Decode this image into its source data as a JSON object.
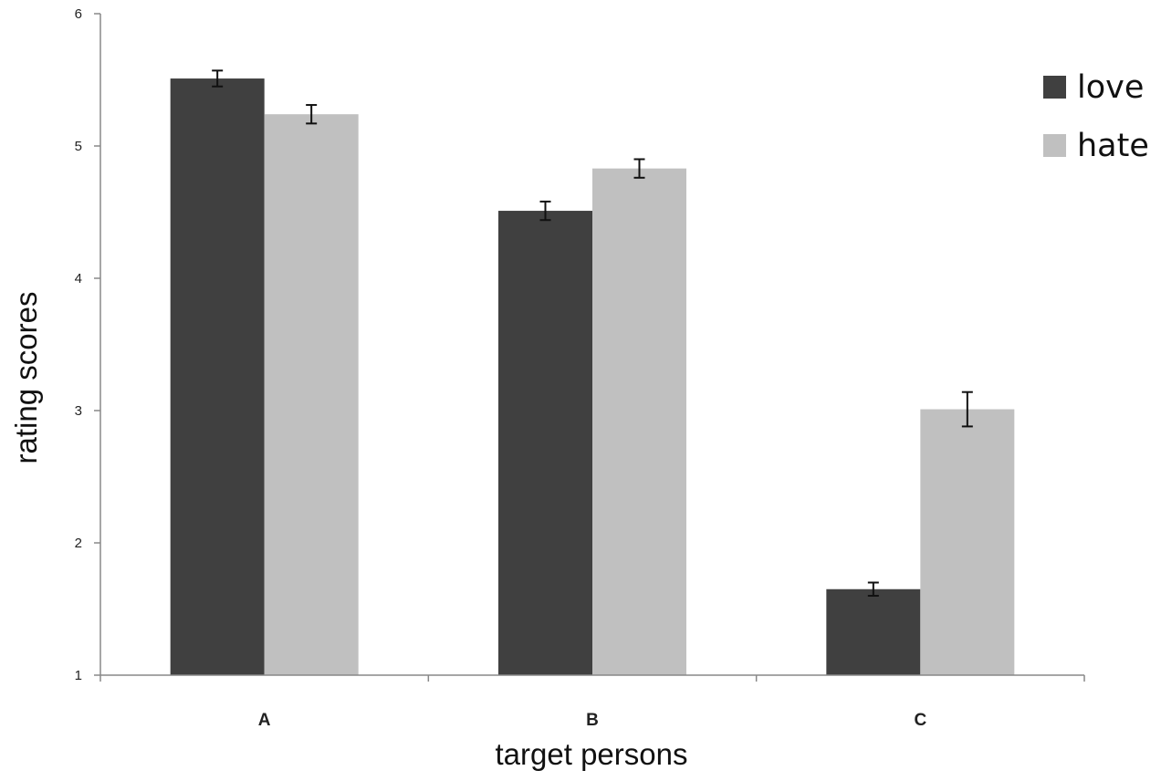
{
  "chart_data": {
    "type": "bar",
    "xlabel": "target persons",
    "ylabel": "rating  scores",
    "categories": [
      "A",
      "B",
      "C"
    ],
    "ylim": [
      1,
      6
    ],
    "yticks": [
      1,
      2,
      3,
      4,
      5,
      6
    ],
    "grid": false,
    "legend_position": "top-right",
    "series": [
      {
        "name": "love",
        "color": "#404040",
        "values": [
          5.51,
          4.51,
          1.65
        ],
        "errors": [
          0.06,
          0.07,
          0.05
        ]
      },
      {
        "name": "hate",
        "color": "#c0c0c0",
        "values": [
          5.24,
          4.83,
          3.01
        ],
        "errors": [
          0.07,
          0.07,
          0.13
        ]
      }
    ]
  }
}
